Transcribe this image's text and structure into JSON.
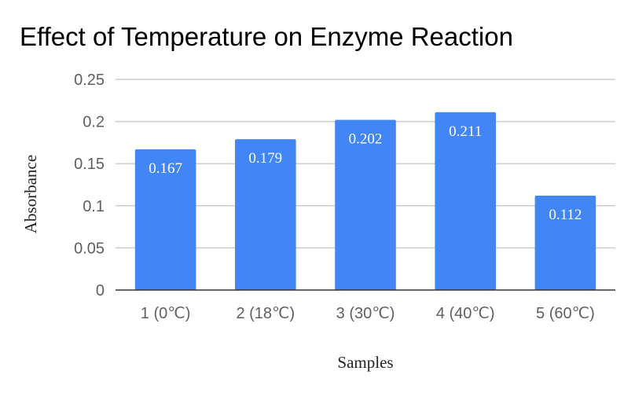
{
  "chart_data": {
    "type": "bar",
    "title": "Effect of Temperature on Enzyme Reaction",
    "xlabel": "Samples",
    "ylabel": "Absorbance",
    "categories": [
      "1 (0℃)",
      "2 (18℃)",
      "3 (30℃)",
      "4 (40℃)",
      "5 (60℃)"
    ],
    "values": [
      0.167,
      0.179,
      0.202,
      0.211,
      0.112
    ],
    "data_labels": [
      "0.167",
      "0.179",
      "0.202",
      "0.211",
      "0.112"
    ],
    "ylim": [
      0,
      0.25
    ],
    "yticks": [
      "0",
      "0.05",
      "0.1",
      "0.15",
      "0.2",
      "0.25"
    ],
    "bar_color": "#4285f4",
    "grid": true,
    "legend": "none"
  }
}
